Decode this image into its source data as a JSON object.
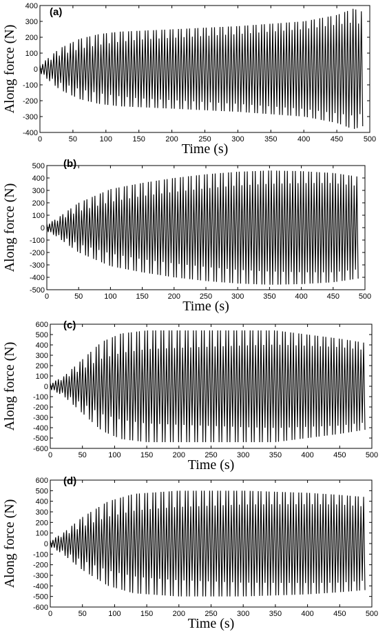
{
  "chart_data": [
    {
      "type": "line",
      "panel": "(a)",
      "xlabel": "Time (s)",
      "ylabel": "Along force (N)",
      "xlim": [
        0,
        500
      ],
      "ylim": [
        -400,
        400
      ],
      "xticks": [
        0,
        50,
        100,
        150,
        200,
        250,
        300,
        350,
        400,
        450,
        500
      ],
      "yticks": [
        -400,
        -300,
        -200,
        -100,
        0,
        100,
        200,
        300,
        400
      ],
      "t_end": 490,
      "envelope": [
        [
          0,
          25
        ],
        [
          10,
          60
        ],
        [
          30,
          130
        ],
        [
          60,
          190
        ],
        [
          90,
          220
        ],
        [
          120,
          235
        ],
        [
          200,
          250
        ],
        [
          300,
          270
        ],
        [
          400,
          300
        ],
        [
          450,
          340
        ],
        [
          475,
          380
        ],
        [
          490,
          360
        ]
      ],
      "amplitude_min": [
        [
          0,
          20
        ],
        [
          150,
          130
        ],
        [
          300,
          170
        ],
        [
          450,
          220
        ],
        [
          490,
          200
        ]
      ]
    },
    {
      "type": "line",
      "panel": "(b)",
      "xlabel": "Time (s)",
      "ylabel": "Along force (N)",
      "xlim": [
        0,
        500
      ],
      "ylim": [
        -500,
        500
      ],
      "xticks": [
        0,
        50,
        100,
        150,
        200,
        250,
        300,
        350,
        400,
        450,
        500
      ],
      "yticks": [
        -500,
        -400,
        -300,
        -200,
        -100,
        0,
        100,
        200,
        300,
        400,
        500
      ],
      "t_end": 490,
      "envelope": [
        [
          0,
          30
        ],
        [
          15,
          70
        ],
        [
          50,
          200
        ],
        [
          100,
          310
        ],
        [
          150,
          360
        ],
        [
          200,
          400
        ],
        [
          250,
          430
        ],
        [
          300,
          450
        ],
        [
          350,
          460
        ],
        [
          400,
          455
        ],
        [
          450,
          440
        ],
        [
          490,
          410
        ]
      ],
      "amplitude_min": [
        [
          0,
          20
        ],
        [
          150,
          150
        ],
        [
          300,
          230
        ],
        [
          450,
          280
        ],
        [
          490,
          260
        ]
      ]
    },
    {
      "type": "line",
      "panel": "(c)",
      "xlabel": "Time (s)",
      "ylabel": "Along force (N)",
      "xlim": [
        0,
        500
      ],
      "ylim": [
        -600,
        600
      ],
      "xticks": [
        0,
        50,
        100,
        150,
        200,
        250,
        300,
        350,
        400,
        450,
        500
      ],
      "yticks": [
        -600,
        -500,
        -400,
        -300,
        -200,
        -100,
        0,
        100,
        200,
        300,
        400,
        500,
        600
      ],
      "t_end": 490,
      "envelope": [
        [
          0,
          30
        ],
        [
          20,
          90
        ],
        [
          50,
          260
        ],
        [
          80,
          430
        ],
        [
          110,
          510
        ],
        [
          150,
          540
        ],
        [
          250,
          540
        ],
        [
          350,
          540
        ],
        [
          400,
          500
        ],
        [
          450,
          460
        ],
        [
          490,
          420
        ]
      ],
      "amplitude_min": [
        [
          0,
          20
        ],
        [
          150,
          180
        ],
        [
          300,
          250
        ],
        [
          450,
          300
        ],
        [
          490,
          280
        ]
      ]
    },
    {
      "type": "line",
      "panel": "(d)",
      "xlabel": "Time (s)",
      "ylabel": "Along force (N)",
      "xlim": [
        0,
        500
      ],
      "ylim": [
        -600,
        600
      ],
      "xticks": [
        0,
        50,
        100,
        150,
        200,
        250,
        300,
        350,
        400,
        450,
        500
      ],
      "yticks": [
        -600,
        -500,
        -400,
        -300,
        -200,
        -100,
        0,
        100,
        200,
        300,
        400,
        500,
        600
      ],
      "t_end": 490,
      "envelope": [
        [
          0,
          30
        ],
        [
          20,
          100
        ],
        [
          50,
          250
        ],
        [
          90,
          400
        ],
        [
          130,
          470
        ],
        [
          200,
          500
        ],
        [
          300,
          500
        ],
        [
          400,
          480
        ],
        [
          450,
          460
        ],
        [
          490,
          440
        ]
      ],
      "amplitude_min": [
        [
          0,
          20
        ],
        [
          150,
          170
        ],
        [
          300,
          240
        ],
        [
          450,
          280
        ],
        [
          490,
          260
        ]
      ]
    }
  ]
}
